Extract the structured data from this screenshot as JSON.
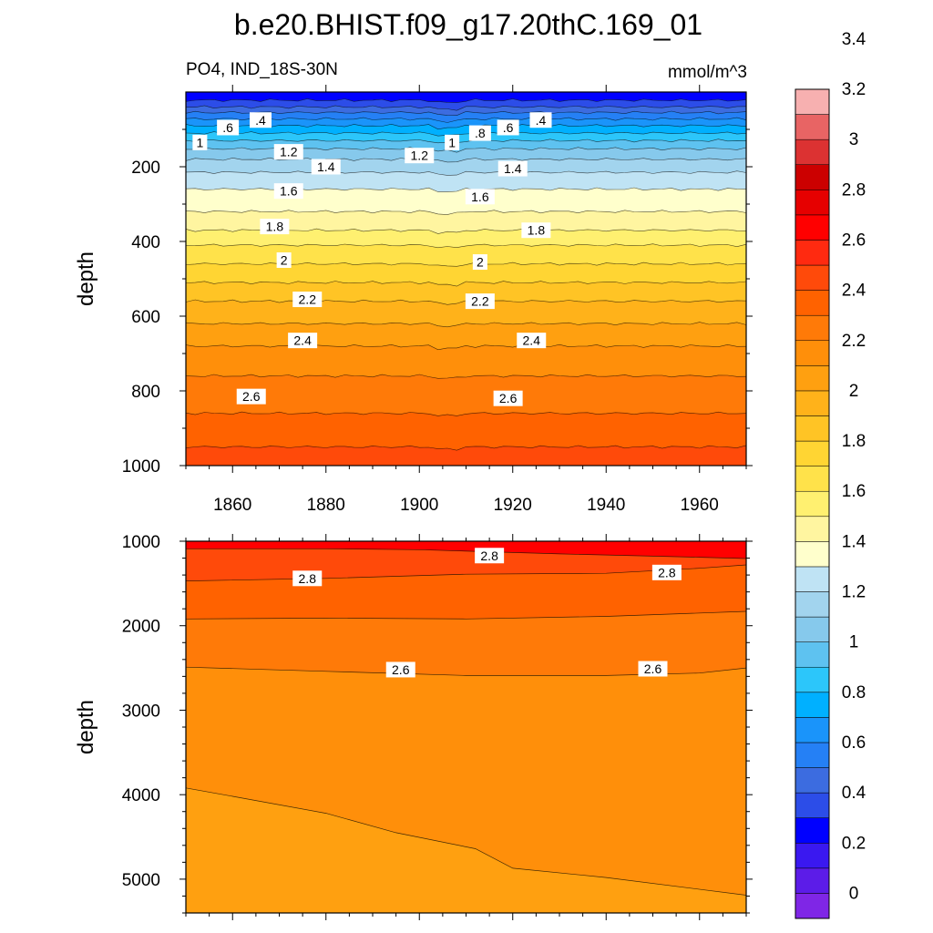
{
  "chart_data": {
    "type": "heatmap",
    "title": "b.e20.BHIST.f09_g17.20thC.169_01",
    "variable_label": "PO4, IND_18S-30N",
    "units_label": "mmol/m^3",
    "colorbar": {
      "colors": [
        "#7f26e6",
        "#5c1ce8",
        "#3a18f0",
        "#0000ff",
        "#2c4de8",
        "#3c6ce0",
        "#2580f5",
        "#1a94fa",
        "#00b0ff",
        "#2cc6fa",
        "#5ec2f0",
        "#86c9ec",
        "#a2d4ee",
        "#bfe3f4",
        "#ffffcc",
        "#fff5a0",
        "#fff070",
        "#ffe24a",
        "#ffd533",
        "#ffc425",
        "#ffb21a",
        "#ffa010",
        "#ff8f0a",
        "#ff7a08",
        "#ff6200",
        "#ff4a0a",
        "#ff2a10",
        "#ff0000",
        "#e60000",
        "#cc0000",
        "#dc3232",
        "#e86464",
        "#f7b0b0"
      ],
      "tick_labels": [
        "0",
        "0.2",
        "0.4",
        "0.6",
        "0.8",
        "1",
        "1.2",
        "1.4",
        "1.6",
        "1.8",
        "2",
        "2.2",
        "2.4",
        "2.6",
        "2.8",
        "3",
        "3.2",
        "3.4"
      ]
    },
    "panels": [
      {
        "name": "upper",
        "ylabel": "depth",
        "y_range": [
          1000,
          0
        ],
        "y_ticks": [
          200,
          400,
          600,
          800,
          1000
        ],
        "x_range": [
          1850,
          1970
        ],
        "x_ticks": [
          1860,
          1880,
          1900,
          1920,
          1940,
          1960
        ],
        "x_tick_labels": [
          "1860",
          "1880",
          "1900",
          "1920",
          "1940",
          "1960"
        ],
        "contour_labels": [
          {
            "text": ".6",
            "year": 1859,
            "depth": 95
          },
          {
            "text": ".4",
            "year": 1866,
            "depth": 75
          },
          {
            "text": "1",
            "year": 1853,
            "depth": 135
          },
          {
            "text": "1.2",
            "year": 1872,
            "depth": 160
          },
          {
            "text": "1.4",
            "year": 1880,
            "depth": 200
          },
          {
            "text": "1.6",
            "year": 1872,
            "depth": 265
          },
          {
            "text": "1.8",
            "year": 1869,
            "depth": 360
          },
          {
            "text": "2",
            "year": 1871,
            "depth": 450
          },
          {
            "text": "2.2",
            "year": 1876,
            "depth": 555
          },
          {
            "text": "2.4",
            "year": 1875,
            "depth": 665
          },
          {
            "text": "2.6",
            "year": 1864,
            "depth": 815
          },
          {
            "text": "1.2",
            "year": 1900,
            "depth": 170
          },
          {
            "text": "1",
            "year": 1907,
            "depth": 135
          },
          {
            "text": ".8",
            "year": 1913,
            "depth": 110
          },
          {
            "text": ".6",
            "year": 1919,
            "depth": 95
          },
          {
            "text": ".4",
            "year": 1926,
            "depth": 75
          },
          {
            "text": "1.4",
            "year": 1920,
            "depth": 205
          },
          {
            "text": "1.6",
            "year": 1913,
            "depth": 280
          },
          {
            "text": "1.8",
            "year": 1925,
            "depth": 370
          },
          {
            "text": "2",
            "year": 1913,
            "depth": 455
          },
          {
            "text": "2.2",
            "year": 1913,
            "depth": 560
          },
          {
            "text": "2.4",
            "year": 1924,
            "depth": 665
          },
          {
            "text": "2.6",
            "year": 1919,
            "depth": 820
          }
        ]
      },
      {
        "name": "lower",
        "ylabel": "depth",
        "y_range": [
          5400,
          1000
        ],
        "y_ticks": [
          1000,
          2000,
          3000,
          4000,
          5000
        ],
        "x_range": [
          1850,
          1970
        ],
        "x_ticks": [
          1860,
          1880,
          1900,
          1920,
          1940,
          1960
        ],
        "contour_labels": [
          {
            "text": "2.8",
            "year": 1915,
            "depth": 1170
          },
          {
            "text": "2.8",
            "year": 1876,
            "depth": 1440
          },
          {
            "text": "2.8",
            "year": 1953,
            "depth": 1370
          },
          {
            "text": "2.6",
            "year": 1896,
            "depth": 2520
          },
          {
            "text": "2.6",
            "year": 1950,
            "depth": 2510
          }
        ]
      }
    ]
  }
}
